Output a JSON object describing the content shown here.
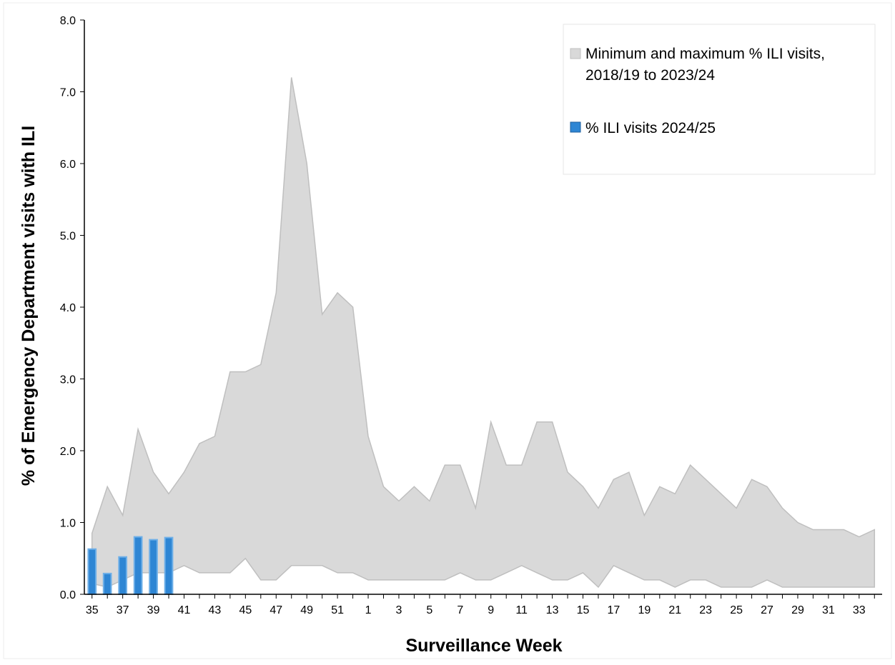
{
  "chart_data": {
    "type": "area",
    "title": "",
    "xlabel": "Surveillance Week",
    "ylabel": "% of Emergency Department  visits with ILI",
    "ylim": [
      0,
      8
    ],
    "yticks": [
      "0.0",
      "1.0",
      "2.0",
      "3.0",
      "4.0",
      "5.0",
      "6.0",
      "7.0",
      "8.0"
    ],
    "grid": false,
    "legend_position": "top-right",
    "weeks": [
      35,
      36,
      37,
      38,
      39,
      40,
      41,
      42,
      43,
      44,
      45,
      46,
      47,
      48,
      49,
      50,
      51,
      52,
      1,
      2,
      3,
      4,
      5,
      6,
      7,
      8,
      9,
      10,
      11,
      12,
      13,
      14,
      15,
      16,
      17,
      18,
      19,
      20,
      21,
      22,
      23,
      24,
      25,
      26,
      27,
      28,
      29,
      30,
      31,
      32,
      33,
      34
    ],
    "xtick_labels": [
      "35",
      "",
      "37",
      "",
      "39",
      "",
      "41",
      "",
      "43",
      "",
      "45",
      "",
      "47",
      "",
      "49",
      "",
      "51",
      "",
      "1",
      "",
      "3",
      "",
      "5",
      "",
      "7",
      "",
      "9",
      "",
      "11",
      "",
      "13",
      "",
      "15",
      "",
      "17",
      "",
      "19",
      "",
      "21",
      "",
      "23",
      "",
      "25",
      "",
      "27",
      "",
      "29",
      "",
      "31",
      "",
      "33",
      ""
    ],
    "series": [
      {
        "name": "Minimum and maximum % ILI visits, 2018/19 to 2023/24",
        "kind": "range",
        "color": "#d9d9d9",
        "stroke": "#bfbfbf",
        "min": [
          0.15,
          0.1,
          0.2,
          0.3,
          0.3,
          0.3,
          0.4,
          0.3,
          0.3,
          0.3,
          0.5,
          0.2,
          0.2,
          0.4,
          0.4,
          0.4,
          0.3,
          0.3,
          0.2,
          0.2,
          0.2,
          0.2,
          0.2,
          0.2,
          0.3,
          0.2,
          0.2,
          0.3,
          0.4,
          0.3,
          0.2,
          0.2,
          0.3,
          0.1,
          0.4,
          0.3,
          0.2,
          0.2,
          0.1,
          0.2,
          0.2,
          0.1,
          0.1,
          0.1,
          0.2,
          0.1,
          0.1,
          0.1,
          0.1,
          0.1,
          0.1,
          0.1
        ],
        "max": [
          0.85,
          1.5,
          1.1,
          2.3,
          1.7,
          1.4,
          1.7,
          2.1,
          2.2,
          3.1,
          3.1,
          3.2,
          4.2,
          7.2,
          6.0,
          3.9,
          4.2,
          4.0,
          2.2,
          1.5,
          1.3,
          1.5,
          1.3,
          1.8,
          1.8,
          1.2,
          2.4,
          1.8,
          1.8,
          2.4,
          2.4,
          1.7,
          1.5,
          1.2,
          1.6,
          1.7,
          1.1,
          1.5,
          1.4,
          1.8,
          1.6,
          1.4,
          1.2,
          1.6,
          1.5,
          1.2,
          1.0,
          0.9,
          0.9,
          0.9,
          0.8,
          0.9
        ]
      },
      {
        "name": "% ILI visits 2024/25",
        "kind": "bar",
        "color": "#2e86d4",
        "values": [
          0.63,
          0.29,
          0.52,
          0.8,
          0.76,
          0.79
        ]
      }
    ]
  }
}
